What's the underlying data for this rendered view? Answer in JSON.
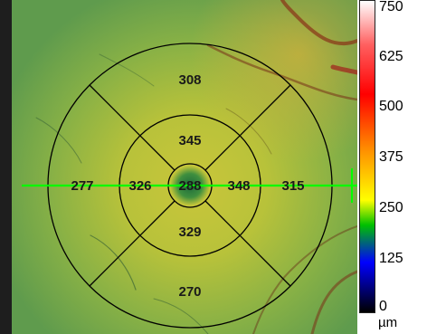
{
  "thickness_map": {
    "sectors": {
      "center": "288",
      "inner_superior": "345",
      "inner_nasal": "348",
      "inner_inferior": "329",
      "inner_temporal": "326",
      "outer_superior": "308",
      "outer_nasal": "315",
      "outer_inferior": "270",
      "outer_temporal": "277"
    },
    "scan_line_color": "#00ff00",
    "grid_color": "#000000"
  },
  "colorbar": {
    "ticks": [
      "750",
      "625",
      "500",
      "375",
      "250",
      "125",
      "0"
    ],
    "unit": "µm",
    "colors": [
      "#ffffff",
      "#ff6060",
      "#ff0000",
      "#ff9000",
      "#ffff00",
      "#00c000",
      "#0000ff",
      "#000000"
    ]
  }
}
